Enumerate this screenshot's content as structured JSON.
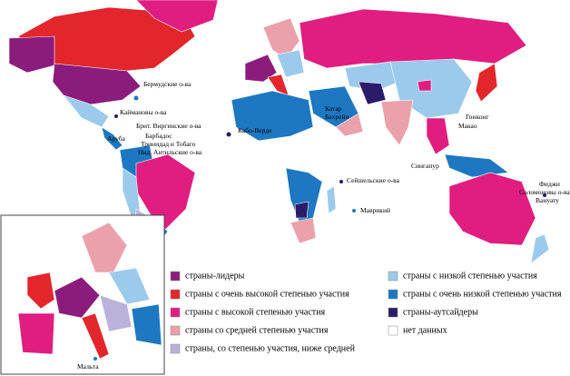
{
  "legend": [
    {
      "text": "страны-лидеры",
      "color": "#8c1c7c"
    },
    {
      "text": "страны с очень высокой степенью участия",
      "color": "#e2262b"
    },
    {
      "text": "страны с высокой степенью участия",
      "color": "#e11d80"
    },
    {
      "text": "страны со средней степенью участия",
      "color": "#eaa1ab"
    },
    {
      "text": "страны, со степенью участия, ниже средней",
      "color": "#bab2da"
    },
    {
      "text": "страны с низкой степенью участия",
      "color": "#9ccaec"
    },
    {
      "text": "страны с очень низкой степенью участия",
      "color": "#1d78c1"
    },
    {
      "text": "страны-аутсайдеры",
      "color": "#2b1b6b"
    },
    {
      "text": "нет данных",
      "color": "#ffffff"
    }
  ],
  "labels": [
    "Бермудские о-ва",
    "Каймановы о-ва",
    "Брит. Виргинские о-ва",
    "Аруба",
    "Барбадос",
    "Тринидад и Тобаго",
    "Нид. Антильские о-ва",
    "Кабо-Верде",
    "Катар",
    "Бахрейн",
    "Гонконг",
    "Макао",
    "Сингапур",
    "Сейшельские о-ва",
    "Маврикий",
    "Фиджи",
    "Соломоновы о-ва",
    "Вануату",
    "Мальта"
  ]
}
